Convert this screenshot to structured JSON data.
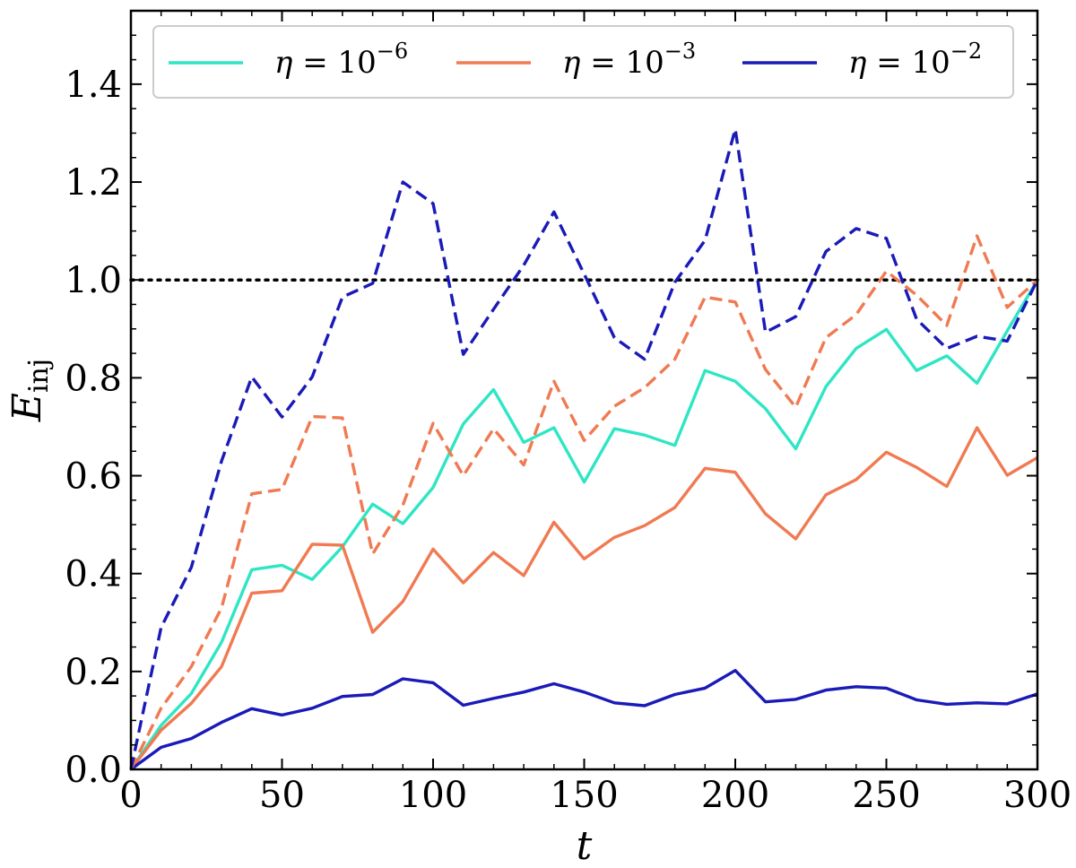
{
  "chart_data": {
    "type": "line",
    "xlabel": "t",
    "ylabel_main": "E",
    "ylabel_sub": "inj",
    "xlim": [
      0,
      300
    ],
    "ylim": [
      0,
      1.55
    ],
    "xticks": [
      0,
      50,
      100,
      150,
      200,
      250,
      300
    ],
    "yticks": [
      0.0,
      0.2,
      0.4,
      0.6,
      0.8,
      1.0,
      1.2,
      1.4
    ],
    "xtick_labels": [
      "0",
      "50",
      "100",
      "150",
      "200",
      "250",
      "300"
    ],
    "ytick_labels": [
      "0.0",
      "0.2",
      "0.4",
      "0.6",
      "0.8",
      "1.0",
      "1.2",
      "1.4"
    ],
    "reference_line": {
      "y": 1.0,
      "style": "dotted",
      "color": "#000000"
    },
    "legend": {
      "placement": "top",
      "entries": [
        {
          "symbol": "η",
          "equals": "= 10",
          "exponent": "−6",
          "color": "#2ee6c4"
        },
        {
          "symbol": "η",
          "equals": "= 10",
          "exponent": "−3",
          "color": "#f07a52"
        },
        {
          "symbol": "η",
          "equals": "= 10",
          "exponent": "−2",
          "color": "#1a1ab8"
        }
      ]
    },
    "x": [
      0,
      10,
      20,
      30,
      40,
      50,
      60,
      70,
      80,
      90,
      100,
      110,
      120,
      130,
      140,
      150,
      160,
      170,
      180,
      190,
      200,
      210,
      220,
      230,
      240,
      250,
      260,
      270,
      280,
      290,
      300
    ],
    "series": [
      {
        "eta": "1e-6",
        "style": "solid",
        "color": "#2ee6c4",
        "values": [
          0,
          0.09,
          0.155,
          0.26,
          0.408,
          0.417,
          0.388,
          0.455,
          0.542,
          0.502,
          0.576,
          0.706,
          0.776,
          0.668,
          0.698,
          0.587,
          0.696,
          0.683,
          0.662,
          0.815,
          0.793,
          0.737,
          0.655,
          0.782,
          0.86,
          0.899,
          0.815,
          0.845,
          0.789,
          0.896,
          1.0
        ]
      },
      {
        "eta": "1e-3",
        "style": "solid",
        "color": "#f07a52",
        "values": [
          0,
          0.08,
          0.135,
          0.21,
          0.36,
          0.365,
          0.46,
          0.458,
          0.28,
          0.343,
          0.45,
          0.381,
          0.443,
          0.396,
          0.505,
          0.43,
          0.474,
          0.498,
          0.535,
          0.615,
          0.607,
          0.522,
          0.471,
          0.561,
          0.592,
          0.648,
          0.617,
          0.578,
          0.698,
          0.601,
          0.637
        ]
      },
      {
        "eta": "1e-2",
        "style": "solid",
        "color": "#1a1ab8",
        "values": [
          0,
          0.045,
          0.063,
          0.096,
          0.124,
          0.111,
          0.125,
          0.149,
          0.153,
          0.185,
          0.177,
          0.131,
          0.145,
          0.158,
          0.175,
          0.158,
          0.136,
          0.13,
          0.153,
          0.166,
          0.202,
          0.138,
          0.143,
          0.162,
          0.169,
          0.166,
          0.142,
          0.133,
          0.136,
          0.134,
          0.154
        ]
      },
      {
        "eta": "1e-3",
        "style": "dashed",
        "color": "#f07a52",
        "values": [
          0,
          0.125,
          0.21,
          0.33,
          0.563,
          0.572,
          0.721,
          0.718,
          0.44,
          0.54,
          0.707,
          0.6,
          0.696,
          0.622,
          0.793,
          0.672,
          0.742,
          0.78,
          0.838,
          0.965,
          0.955,
          0.817,
          0.74,
          0.882,
          0.929,
          1.018,
          0.969,
          0.907,
          1.09,
          0.944,
          1.0
        ]
      },
      {
        "eta": "1e-2",
        "style": "dashed",
        "color": "#1a1ab8",
        "values": [
          0,
          0.29,
          0.413,
          0.63,
          0.802,
          0.72,
          0.802,
          0.965,
          0.993,
          1.2,
          1.156,
          0.848,
          0.94,
          1.03,
          1.139,
          1.012,
          0.882,
          0.838,
          0.995,
          1.081,
          1.308,
          0.893,
          0.925,
          1.058,
          1.105,
          1.085,
          0.92,
          0.86,
          0.885,
          0.875,
          1.0
        ]
      }
    ]
  }
}
